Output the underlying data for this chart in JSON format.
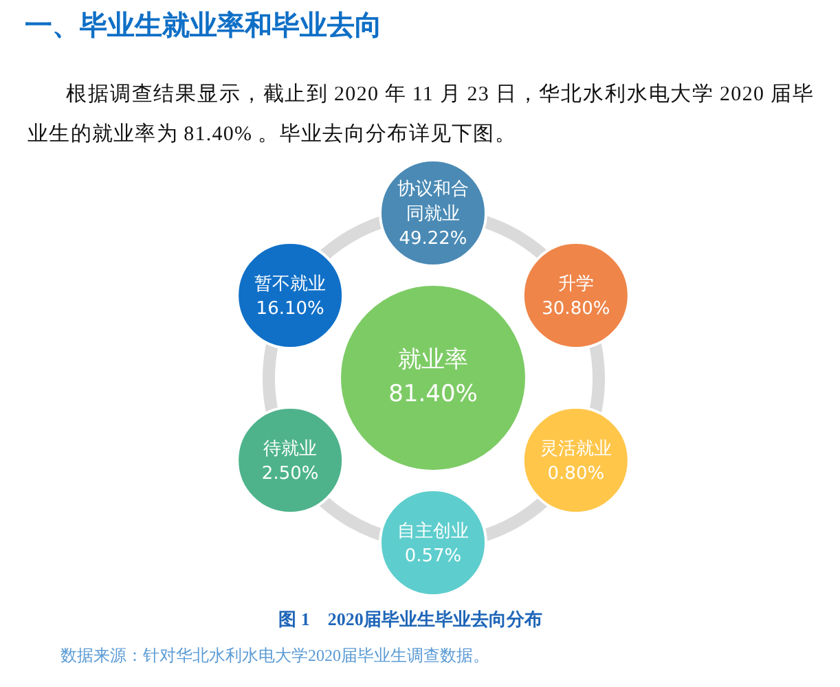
{
  "chart_data": {
    "type": "other",
    "title": "一、毕业生就业率和毕业去向",
    "subtitle": "根据调查结果显示，截止到2020年11月23日，华北水利水电大学2020届毕业生的就业率为81.40%。毕业去向分布详见下图。",
    "categories": [
      "就业率",
      "协议和合同就业",
      "升学",
      "灵活就业",
      "自主创业",
      "待就业",
      "暂不就业"
    ],
    "values": [
      81.4,
      49.22,
      30.8,
      0.8,
      0.57,
      2.5,
      16.1
    ],
    "value_labels": [
      "81.40%",
      "49.22%",
      "30.80%",
      "0.80%",
      "0.57%",
      "2.50%",
      "16.10%"
    ],
    "colors": [
      "#7dcb65",
      "#4a8ab5",
      "#ef8549",
      "#ffc64a",
      "#5ecdcd",
      "#4eb38b",
      "#1070c8"
    ],
    "annotations": [
      "图 1　2020届毕业生毕业去向分布",
      "数据来源：针对华北水利水电大学2020届毕业生调查数据。"
    ]
  }
}
